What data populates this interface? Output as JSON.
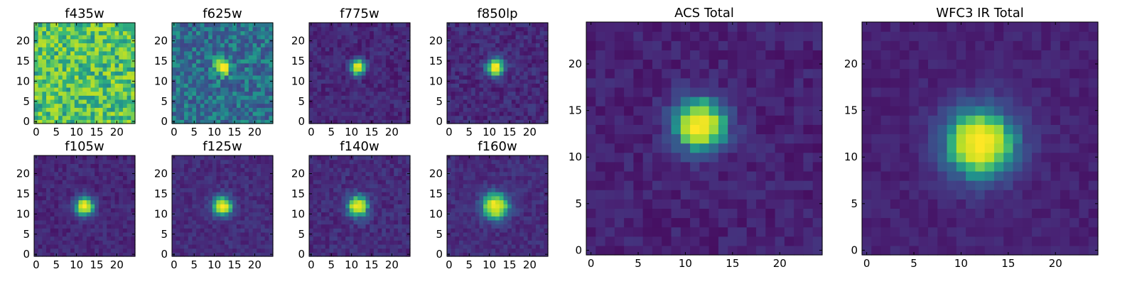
{
  "colors": {
    "colormap": "viridis",
    "frame": "#000000",
    "background": "#ffffff"
  },
  "chart_data": [
    {
      "type": "heatmap",
      "title": "f435w",
      "image_size": 25,
      "xlim": [
        0,
        24
      ],
      "ylim": [
        0,
        24
      ],
      "xticks": [
        0,
        5,
        10,
        15,
        20
      ],
      "yticks": [
        0,
        5,
        10,
        15,
        20
      ],
      "source": {
        "center": [
          12,
          13
        ],
        "peak": 0.0,
        "sigma": 2.0,
        "background": 0.68,
        "noise": 0.2
      }
    },
    {
      "type": "heatmap",
      "title": "f625w",
      "image_size": 25,
      "xlim": [
        0,
        24
      ],
      "ylim": [
        0,
        24
      ],
      "xticks": [
        0,
        5,
        10,
        15,
        20
      ],
      "yticks": [
        0,
        5,
        10,
        15,
        20
      ],
      "source": {
        "center": [
          12,
          13.5
        ],
        "peak": 0.65,
        "sigma": 1.3,
        "background": 0.4,
        "noise": 0.14
      }
    },
    {
      "type": "heatmap",
      "title": "f775w",
      "image_size": 25,
      "xlim": [
        0,
        24
      ],
      "ylim": [
        0,
        24
      ],
      "xticks": [
        0,
        5,
        10,
        15,
        20
      ],
      "yticks": [
        0,
        5,
        10,
        15,
        20
      ],
      "source": {
        "center": [
          11.5,
          13.5
        ],
        "peak": 0.9,
        "sigma": 1.3,
        "background": 0.14,
        "noise": 0.08
      }
    },
    {
      "type": "heatmap",
      "title": "f850lp",
      "image_size": 25,
      "xlim": [
        0,
        24
      ],
      "ylim": [
        0,
        24
      ],
      "xticks": [
        0,
        5,
        10,
        15,
        20
      ],
      "yticks": [
        0,
        5,
        10,
        15,
        20
      ],
      "source": {
        "center": [
          11.5,
          13.5
        ],
        "peak": 0.85,
        "sigma": 1.5,
        "background": 0.15,
        "noise": 0.09
      }
    },
    {
      "type": "heatmap",
      "title": "ACS Total",
      "image_size": 25,
      "xlim": [
        0,
        24
      ],
      "ylim": [
        0,
        24
      ],
      "xticks": [
        0,
        5,
        10,
        15,
        20
      ],
      "yticks": [
        0,
        5,
        10,
        15,
        20
      ],
      "source": {
        "center": [
          11.5,
          13.5
        ],
        "peak": 0.95,
        "sigma": 1.9,
        "background": 0.12,
        "noise": 0.07
      }
    },
    {
      "type": "heatmap",
      "title": "f105w",
      "image_size": 25,
      "xlim": [
        0,
        24
      ],
      "ylim": [
        0,
        24
      ],
      "xticks": [
        0,
        5,
        10,
        15,
        20
      ],
      "yticks": [
        0,
        5,
        10,
        15,
        20
      ],
      "source": {
        "center": [
          12,
          12
        ],
        "peak": 0.9,
        "sigma": 1.6,
        "background": 0.14,
        "noise": 0.07
      }
    },
    {
      "type": "heatmap",
      "title": "f125w",
      "image_size": 25,
      "xlim": [
        0,
        24
      ],
      "ylim": [
        0,
        24
      ],
      "xticks": [
        0,
        5,
        10,
        15,
        20
      ],
      "yticks": [
        0,
        5,
        10,
        15,
        20
      ],
      "source": {
        "center": [
          12,
          12
        ],
        "peak": 0.85,
        "sigma": 1.7,
        "background": 0.16,
        "noise": 0.07
      }
    },
    {
      "type": "heatmap",
      "title": "f140w",
      "image_size": 25,
      "xlim": [
        0,
        24
      ],
      "ylim": [
        0,
        24
      ],
      "xticks": [
        0,
        5,
        10,
        15,
        20
      ],
      "yticks": [
        0,
        5,
        10,
        15,
        20
      ],
      "source": {
        "center": [
          11.5,
          12
        ],
        "peak": 0.85,
        "sigma": 1.8,
        "background": 0.16,
        "noise": 0.08
      }
    },
    {
      "type": "heatmap",
      "title": "f160w",
      "image_size": 25,
      "xlim": [
        0,
        24
      ],
      "ylim": [
        0,
        24
      ],
      "xticks": [
        0,
        5,
        10,
        15,
        20
      ],
      "yticks": [
        0,
        5,
        10,
        15,
        20
      ],
      "source": {
        "center": [
          11.5,
          12
        ],
        "peak": 0.85,
        "sigma": 2.3,
        "background": 0.16,
        "noise": 0.07
      }
    },
    {
      "type": "heatmap",
      "title": "WFC3 IR Total",
      "image_size": 25,
      "xlim": [
        0,
        24
      ],
      "ylim": [
        0,
        24
      ],
      "xticks": [
        0,
        5,
        10,
        15,
        20
      ],
      "yticks": [
        0,
        5,
        10,
        15,
        20
      ],
      "source": {
        "center": [
          12,
          11.5
        ],
        "peak": 0.95,
        "sigma": 2.6,
        "background": 0.12,
        "noise": 0.05
      }
    }
  ]
}
